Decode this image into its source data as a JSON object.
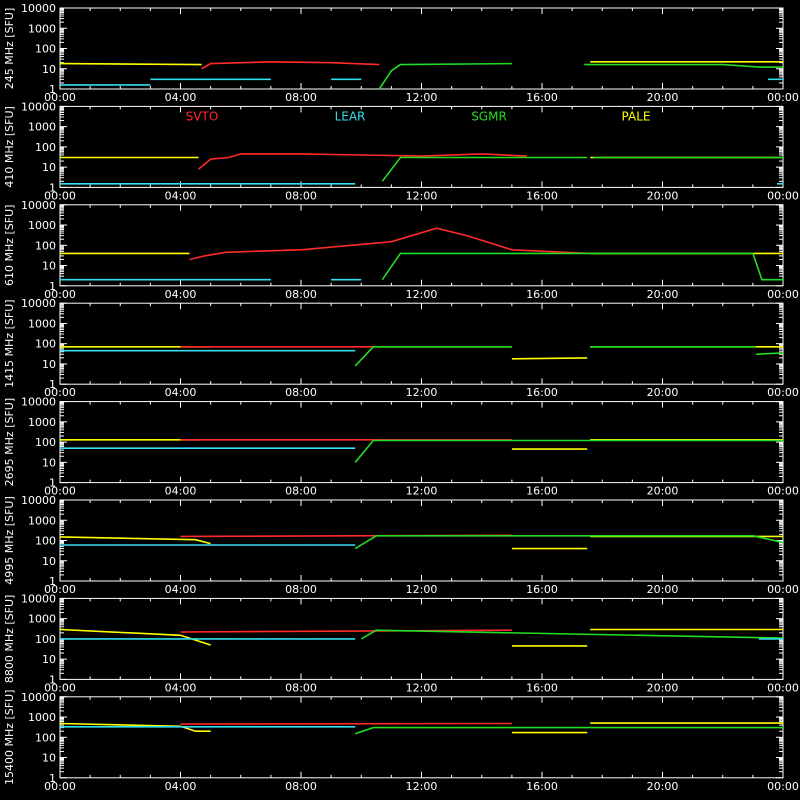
{
  "colors": {
    "background": "#000000",
    "axes": "#ffffff",
    "SVTO": "#ff2a2a",
    "LEAR": "#33ddee",
    "SGMR": "#22dd22",
    "PALE": "#ffff00"
  },
  "chart_data": {
    "type": "line",
    "y_scale": "log",
    "ylim": [
      1,
      10000
    ],
    "y_tick_labels": [
      "1",
      "10",
      "100",
      "1000",
      "10000"
    ],
    "x_tick_labels": [
      "00:00",
      "04:00",
      "08:00",
      "12:00",
      "16:00",
      "20:00",
      "00:00"
    ],
    "xlim_hours": [
      0,
      24
    ],
    "stations": [
      "SVTO",
      "LEAR",
      "SGMR",
      "PALE"
    ],
    "panels": [
      {
        "ylabel": "245 MHz [SFU]",
        "series": [
          {
            "name": "PALE",
            "segments": [
              [
                [
                  0,
                  18
                ],
                [
                  4.7,
                  16
                ]
              ],
              [
                [
                  17.6,
                  22
                ],
                [
                  24,
                  22
                ]
              ]
            ]
          },
          {
            "name": "SVTO",
            "segments": [
              [
                [
                  4.7,
                  10
                ],
                [
                  5,
                  18
                ],
                [
                  7,
                  22
                ],
                [
                  9,
                  20
                ],
                [
                  10.6,
                  16
                ]
              ]
            ]
          },
          {
            "name": "SGMR",
            "segments": [
              [
                [
                  10.6,
                  1
                ],
                [
                  11,
                  8
                ],
                [
                  11.3,
                  16
                ],
                [
                  15,
                  18
                ]
              ],
              [
                [
                  17.4,
                  16
                ],
                [
                  22,
                  16
                ],
                [
                  23.2,
                  12
                ],
                [
                  24,
                  12
                ]
              ]
            ]
          },
          {
            "name": "LEAR",
            "segments": [
              [
                [
                  0,
                  1.6
                ],
                [
                  3,
                  1.6
                ]
              ],
              [
                [
                  3,
                  3
                ],
                [
                  7,
                  3
                ]
              ],
              [
                [
                  9,
                  3
                ],
                [
                  10,
                  3
                ]
              ],
              [
                [
                  23.5,
                  3
                ],
                [
                  24,
                  3
                ]
              ]
            ]
          }
        ]
      },
      {
        "ylabel": "410 MHz [SFU]",
        "series": [
          {
            "name": "PALE",
            "segments": [
              [
                [
                  0,
                  30
                ],
                [
                  4.6,
                  30
                ]
              ],
              [
                [
                  17.6,
                  30
                ],
                [
                  24,
                  30
                ]
              ]
            ]
          },
          {
            "name": "SVTO",
            "segments": [
              [
                [
                  4.6,
                  8
                ],
                [
                  5,
                  25
                ],
                [
                  5.6,
                  30
                ],
                [
                  6,
                  45
                ],
                [
                  8,
                  45
                ],
                [
                  12,
                  35
                ],
                [
                  14,
                  45
                ],
                [
                  15.5,
                  35
                ]
              ]
            ]
          },
          {
            "name": "SGMR",
            "segments": [
              [
                [
                  10.7,
                  2
                ],
                [
                  11.3,
                  30
                ],
                [
                  17.5,
                  30
                ]
              ],
              [
                [
                  17.7,
                  30
                ],
                [
                  24,
                  30
                ]
              ]
            ]
          },
          {
            "name": "LEAR",
            "segments": [
              [
                [
                  0,
                  1.5
                ],
                [
                  9.8,
                  1.5
                ]
              ],
              [
                [
                  23.8,
                  1.5
                ],
                [
                  24,
                  1.5
                ]
              ]
            ]
          }
        ]
      },
      {
        "ylabel": "610 MHz [SFU]",
        "series": [
          {
            "name": "PALE",
            "segments": [
              [
                [
                  0,
                  40
                ],
                [
                  4.3,
                  40
                ]
              ],
              [
                [
                  17.6,
                  40
                ],
                [
                  24,
                  40
                ]
              ]
            ]
          },
          {
            "name": "SVTO",
            "segments": [
              [
                [
                  4.3,
                  20
                ],
                [
                  4.8,
                  30
                ],
                [
                  5.5,
                  45
                ],
                [
                  8,
                  60
                ],
                [
                  11,
                  150
                ],
                [
                  12.5,
                  700
                ],
                [
                  13.5,
                  300
                ],
                [
                  15,
                  60
                ],
                [
                  17.6,
                  40
                ]
              ]
            ]
          },
          {
            "name": "SGMR",
            "segments": [
              [
                [
                  10.7,
                  2
                ],
                [
                  11.3,
                  40
                ],
                [
                  23,
                  40
                ],
                [
                  23.3,
                  2
                ],
                [
                  24,
                  2
                ]
              ]
            ]
          },
          {
            "name": "LEAR",
            "segments": [
              [
                [
                  0,
                  2
                ],
                [
                  7,
                  2
                ]
              ],
              [
                [
                  9,
                  2
                ],
                [
                  10,
                  2
                ]
              ]
            ]
          }
        ]
      },
      {
        "ylabel": "1415 MHz [SFU]",
        "series": [
          {
            "name": "PALE",
            "segments": [
              [
                [
                  0,
                  70
                ],
                [
                  5,
                  70
                ]
              ],
              [
                [
                  15,
                  18
                ],
                [
                  17.5,
                  20
                ]
              ],
              [
                [
                  17.6,
                  70
                ],
                [
                  24,
                  70
                ]
              ]
            ]
          },
          {
            "name": "SVTO",
            "segments": [
              [
                [
                  4,
                  70
                ],
                [
                  15,
                  70
                ]
              ]
            ]
          },
          {
            "name": "SGMR",
            "segments": [
              [
                [
                  9.8,
                  8
                ],
                [
                  10.4,
                  70
                ],
                [
                  15,
                  70
                ]
              ],
              [
                [
                  17.6,
                  70
                ],
                [
                  23.1,
                  70
                ]
              ],
              [
                [
                  23.1,
                  30
                ],
                [
                  24,
                  35
                ]
              ]
            ]
          },
          {
            "name": "LEAR",
            "segments": [
              [
                [
                  0,
                  45
                ],
                [
                  9.8,
                  45
                ]
              ]
            ]
          }
        ]
      },
      {
        "ylabel": "2695 MHz [SFU]",
        "series": [
          {
            "name": "PALE",
            "segments": [
              [
                [
                  0,
                  130
                ],
                [
                  4.6,
                  130
                ]
              ],
              [
                [
                  15,
                  45
                ],
                [
                  17.5,
                  45
                ]
              ],
              [
                [
                  17.6,
                  130
                ],
                [
                  24,
                  130
                ]
              ]
            ]
          },
          {
            "name": "SVTO",
            "segments": [
              [
                [
                  4,
                  130
                ],
                [
                  15,
                  130
                ]
              ]
            ]
          },
          {
            "name": "SGMR",
            "segments": [
              [
                [
                  9.8,
                  10
                ],
                [
                  10.4,
                  120
                ],
                [
                  24,
                  120
                ]
              ]
            ]
          },
          {
            "name": "LEAR",
            "segments": [
              [
                [
                  0,
                  50
                ],
                [
                  9.8,
                  50
                ]
              ]
            ]
          }
        ]
      },
      {
        "ylabel": "4995 MHz [SFU]",
        "series": [
          {
            "name": "PALE",
            "segments": [
              [
                [
                  0,
                  150
                ],
                [
                  4.5,
                  110
                ],
                [
                  5,
                  70
                ]
              ],
              [
                [
                  15,
                  40
                ],
                [
                  17.5,
                  40
                ]
              ],
              [
                [
                  17.6,
                  160
                ],
                [
                  24,
                  160
                ]
              ]
            ]
          },
          {
            "name": "SVTO",
            "segments": [
              [
                [
                  4,
                  160
                ],
                [
                  15,
                  180
                ]
              ]
            ]
          },
          {
            "name": "SGMR",
            "segments": [
              [
                [
                  9.8,
                  40
                ],
                [
                  10.5,
                  170
                ],
                [
                  23,
                  170
                ],
                [
                  24,
                  80
                ]
              ]
            ]
          },
          {
            "name": "LEAR",
            "segments": [
              [
                [
                  0,
                  60
                ],
                [
                  9.8,
                  60
                ]
              ]
            ]
          }
        ]
      },
      {
        "ylabel": "8800 MHz [SFU]",
        "series": [
          {
            "name": "PALE",
            "segments": [
              [
                [
                  0,
                  290
                ],
                [
                  4,
                  150
                ],
                [
                  5,
                  50
                ]
              ],
              [
                [
                  15,
                  45
                ],
                [
                  17.5,
                  45
                ]
              ],
              [
                [
                  17.6,
                  290
                ],
                [
                  24,
                  290
                ]
              ]
            ]
          },
          {
            "name": "SVTO",
            "segments": [
              [
                [
                  4,
                  220
                ],
                [
                  15,
                  270
                ]
              ]
            ]
          },
          {
            "name": "SGMR",
            "segments": [
              [
                [
                  10,
                  100
                ],
                [
                  10.5,
                  270
                ],
                [
                  24,
                  110
                ]
              ]
            ]
          },
          {
            "name": "LEAR",
            "segments": [
              [
                [
                  0,
                  100
                ],
                [
                  9.8,
                  100
                ]
              ],
              [
                [
                  23.2,
                  100
                ],
                [
                  24,
                  100
                ]
              ]
            ]
          }
        ]
      },
      {
        "ylabel": "15400 MHz [SFU]",
        "series": [
          {
            "name": "PALE",
            "segments": [
              [
                [
                  0,
                  480
                ],
                [
                  4,
                  350
                ],
                [
                  4.5,
                  200
                ],
                [
                  5,
                  200
                ]
              ],
              [
                [
                  15,
                  170
                ],
                [
                  17.5,
                  170
                ]
              ],
              [
                [
                  17.6,
                  500
                ],
                [
                  24,
                  500
                ]
              ]
            ]
          },
          {
            "name": "SVTO",
            "segments": [
              [
                [
                  4,
                  450
                ],
                [
                  15,
                  480
                ]
              ]
            ]
          },
          {
            "name": "SGMR",
            "segments": [
              [
                [
                  9.8,
                  150
                ],
                [
                  10.4,
                  300
                ],
                [
                  24,
                  300
                ]
              ]
            ]
          },
          {
            "name": "LEAR",
            "segments": [
              [
                [
                  0,
                  330
                ],
                [
                  9.8,
                  330
                ]
              ]
            ]
          }
        ]
      }
    ]
  }
}
